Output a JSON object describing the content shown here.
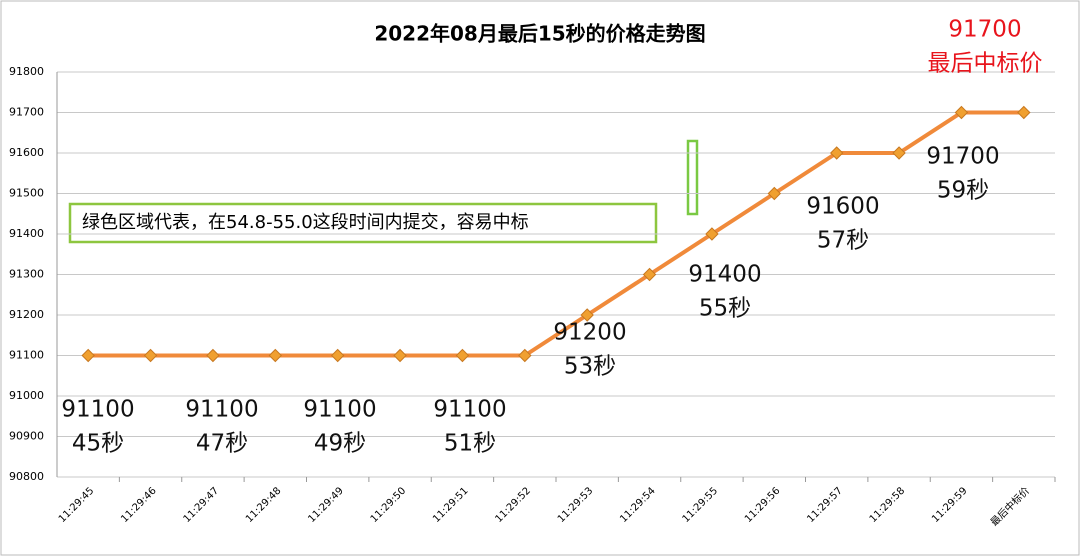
{
  "chart_data": {
    "type": "line",
    "title": "2022年08月最后15秒的价格走势图",
    "categories": [
      "11:29:45",
      "11:29:46",
      "11:29:47",
      "11:29:48",
      "11:29:49",
      "11:29:50",
      "11:29:51",
      "11:29:52",
      "11:29:53",
      "11:29:54",
      "11:29:55",
      "11:29:56",
      "11:29:57",
      "11:29:58",
      "11:29:59",
      "最后中标价"
    ],
    "values": [
      91100,
      91100,
      91100,
      91100,
      91100,
      91100,
      91100,
      91100,
      91200,
      91300,
      91400,
      91500,
      91600,
      91600,
      91700,
      91700
    ],
    "color": "#f08a3a",
    "marker_color": "#f0a030",
    "ylim": [
      90800,
      91800
    ],
    "yticks": [
      90800,
      90900,
      91000,
      91100,
      91200,
      91300,
      91400,
      91500,
      91600,
      91700,
      91800
    ],
    "grid": true,
    "annotations": [
      {
        "lines": [
          "91100",
          "45秒"
        ],
        "color": "#111111"
      },
      {
        "lines": [
          "91100",
          "47秒"
        ],
        "color": "#111111"
      },
      {
        "lines": [
          "91100",
          "49秒"
        ],
        "color": "#111111"
      },
      {
        "lines": [
          "91100",
          "51秒"
        ],
        "color": "#111111"
      },
      {
        "lines": [
          "91200",
          "53秒"
        ],
        "color": "#111111"
      },
      {
        "lines": [
          "91400",
          "55秒"
        ],
        "color": "#111111"
      },
      {
        "lines": [
          "91600",
          "57秒"
        ],
        "color": "#111111"
      },
      {
        "lines": [
          "91700",
          "59秒"
        ],
        "color": "#111111"
      },
      {
        "lines": [
          "91700",
          "最后中标价"
        ],
        "color": "#e8141c"
      }
    ],
    "note": "绿色区域代表，在54.8-55.0这段时间内提交，容易中标"
  }
}
